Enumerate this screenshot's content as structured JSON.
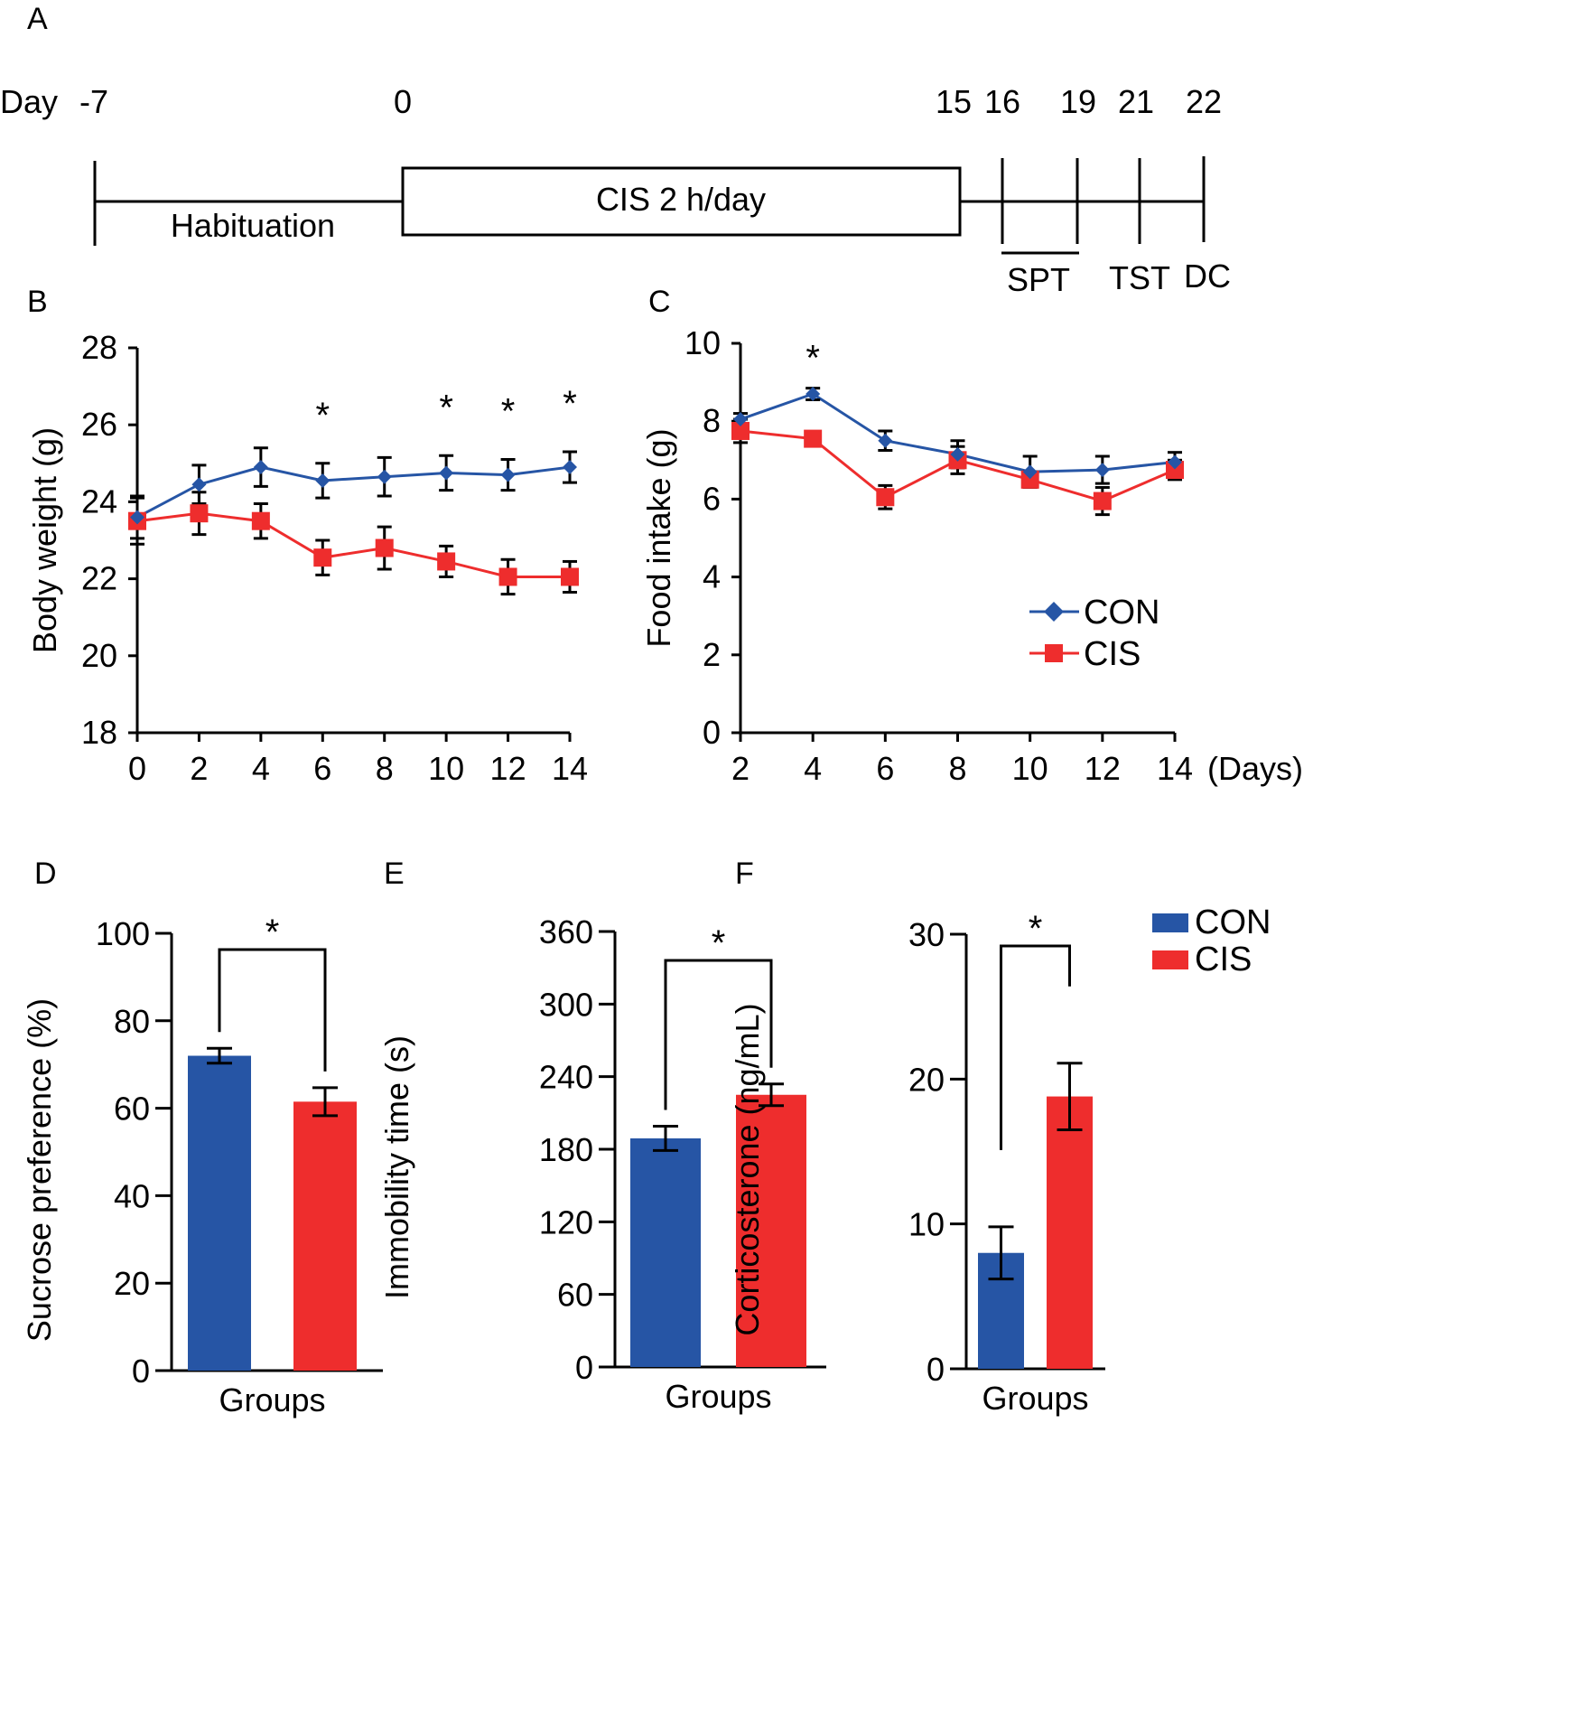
{
  "figure": {
    "panels": [
      "A",
      "B",
      "C",
      "D",
      "E",
      "F"
    ]
  },
  "timeline": {
    "panel_label": "A",
    "day_label": "Day",
    "days": [
      "-7",
      "0",
      "15",
      "16",
      "19",
      "21",
      "22"
    ],
    "phases": [
      {
        "label": "Habituation",
        "from": "-7",
        "to": "0"
      },
      {
        "label": "CIS 2 h/day",
        "from": "0",
        "to": "15"
      }
    ],
    "tests": [
      {
        "label": "SPT",
        "from": "16",
        "to": "19"
      },
      {
        "label": "TST",
        "at": "21"
      },
      {
        "label": "DC",
        "at": "22"
      }
    ]
  },
  "colors": {
    "CON": "#2655a5",
    "CIS": "#ee2d2d",
    "axis": "#000000"
  },
  "chart_data": [
    {
      "panel": "B",
      "type": "line",
      "title": "",
      "xlabel": "",
      "ylabel": "Body weight (g)",
      "x": [
        0,
        2,
        4,
        6,
        8,
        10,
        12,
        14
      ],
      "xticks": [
        "0",
        "2",
        "4",
        "6",
        "8",
        "10",
        "12",
        "14"
      ],
      "yticks": [
        "18",
        "20",
        "22",
        "24",
        "26",
        "28"
      ],
      "ylim": [
        18,
        28
      ],
      "xlim": [
        0,
        14
      ],
      "grid": false,
      "series": [
        {
          "name": "CON",
          "marker": "diamond",
          "values": [
            23.6,
            24.45,
            24.9,
            24.55,
            24.65,
            24.75,
            24.7,
            24.9
          ],
          "errors": [
            0.55,
            0.5,
            0.5,
            0.45,
            0.5,
            0.45,
            0.4,
            0.4
          ]
        },
        {
          "name": "CIS",
          "marker": "square",
          "values": [
            23.5,
            23.7,
            23.5,
            22.55,
            22.8,
            22.45,
            22.05,
            22.05
          ],
          "errors": [
            0.6,
            0.55,
            0.45,
            0.45,
            0.55,
            0.4,
            0.45,
            0.4
          ]
        }
      ],
      "significance": [
        {
          "x": 6,
          "label": "*"
        },
        {
          "x": 10,
          "label": "*"
        },
        {
          "x": 12,
          "label": "*"
        },
        {
          "x": 14,
          "label": "*"
        }
      ]
    },
    {
      "panel": "C",
      "type": "line",
      "title": "",
      "xlabel": "(Days)",
      "ylabel": "Food intake (g)",
      "x": [
        2,
        4,
        6,
        8,
        10,
        12,
        14
      ],
      "xticks": [
        "2",
        "4",
        "6",
        "8",
        "10",
        "12",
        "14"
      ],
      "yticks": [
        "0",
        "2",
        "4",
        "6",
        "8",
        "10"
      ],
      "ylim": [
        0,
        10
      ],
      "xlim": [
        2,
        14
      ],
      "grid": false,
      "legend": "center-right",
      "series": [
        {
          "name": "CON",
          "marker": "diamond",
          "values": [
            8.05,
            8.7,
            7.5,
            7.15,
            6.7,
            6.75,
            6.95
          ],
          "errors": [
            0.15,
            0.15,
            0.25,
            0.35,
            0.4,
            0.35,
            0.25
          ]
        },
        {
          "name": "CIS",
          "marker": "square",
          "values": [
            7.75,
            7.55,
            6.05,
            7.0,
            6.5,
            5.95,
            6.75
          ],
          "errors": [
            0.3,
            0.15,
            0.3,
            0.35,
            0.2,
            0.35,
            0.25
          ]
        }
      ],
      "significance": [
        {
          "x": 4,
          "label": "*"
        }
      ]
    },
    {
      "panel": "D",
      "type": "bar",
      "title": "",
      "xlabel": "Groups",
      "ylabel": "Sucrose preference (%)",
      "categories": [
        "CON",
        "CIS"
      ],
      "values": [
        72,
        61.5
      ],
      "errors": [
        1.7,
        3.2
      ],
      "yticks": [
        "0",
        "20",
        "40",
        "60",
        "80",
        "100"
      ],
      "ylim": [
        0,
        100
      ],
      "grid": false,
      "significance": {
        "between": [
          "CON",
          "CIS"
        ],
        "label": "*"
      }
    },
    {
      "panel": "E",
      "type": "bar",
      "title": "",
      "xlabel": "Groups",
      "ylabel": "Immobility time (s)",
      "categories": [
        "CON",
        "CIS"
      ],
      "values": [
        189,
        225
      ],
      "errors": [
        10,
        9
      ],
      "yticks": [
        "0",
        "60",
        "120",
        "180",
        "240",
        "300",
        "360"
      ],
      "ylim": [
        0,
        360
      ],
      "grid": false,
      "significance": {
        "between": [
          "CON",
          "CIS"
        ],
        "label": "*"
      }
    },
    {
      "panel": "F",
      "type": "bar",
      "title": "",
      "xlabel": "Groups",
      "ylabel": "Corticosterone (ng/mL)",
      "categories": [
        "CON",
        "CIS"
      ],
      "values": [
        8.0,
        18.8
      ],
      "errors": [
        1.8,
        2.3
      ],
      "yticks": [
        "0",
        "10",
        "20",
        "30"
      ],
      "ylim": [
        0,
        30
      ],
      "grid": false,
      "legend": "top-right",
      "significance": {
        "between": [
          "CON",
          "CIS"
        ],
        "label": "*"
      }
    }
  ],
  "legend": {
    "entries": [
      "CON",
      "CIS"
    ]
  }
}
